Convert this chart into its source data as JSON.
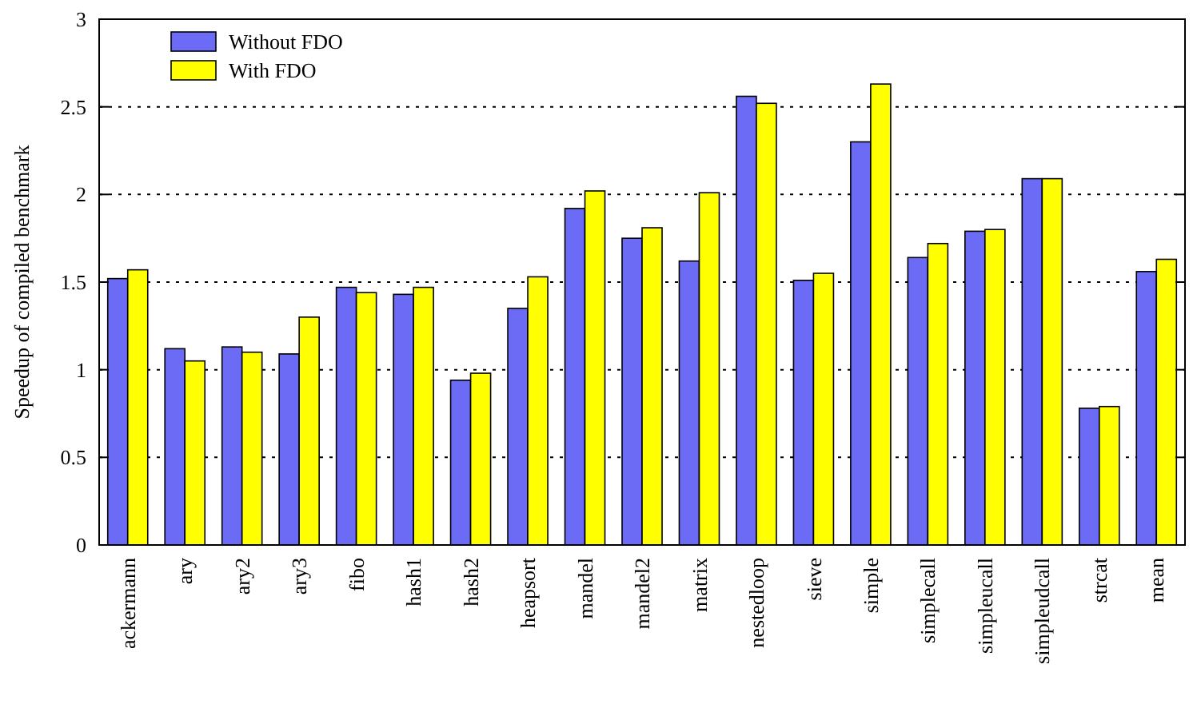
{
  "chart_data": {
    "type": "bar",
    "ylabel": "Speedup of compiled benchmark",
    "categories": [
      "ackermann",
      "ary",
      "ary2",
      "ary3",
      "fibo",
      "hash1",
      "hash2",
      "heapsort",
      "mandel",
      "mandel2",
      "matrix",
      "nestedloop",
      "sieve",
      "simple",
      "simplecall",
      "simpleucall",
      "simpleudcall",
      "strcat",
      "mean"
    ],
    "series": [
      {
        "name": "Without FDO",
        "color": "#6b6bf5",
        "values": [
          1.52,
          1.12,
          1.13,
          1.09,
          1.47,
          1.43,
          0.94,
          1.35,
          1.92,
          1.75,
          1.62,
          2.56,
          1.51,
          2.3,
          1.64,
          1.79,
          2.09,
          0.78,
          1.56
        ]
      },
      {
        "name": "With FDO",
        "color": "#ffff00",
        "values": [
          1.57,
          1.05,
          1.1,
          1.3,
          1.44,
          1.47,
          0.98,
          1.53,
          2.02,
          1.81,
          2.01,
          2.52,
          1.55,
          2.63,
          1.72,
          1.8,
          2.09,
          0.79,
          1.63
        ]
      }
    ],
    "ylim": [
      0,
      3
    ],
    "yticks": [
      0,
      0.5,
      1,
      1.5,
      2,
      2.5,
      3
    ],
    "grid": "y",
    "legend": "top left"
  }
}
